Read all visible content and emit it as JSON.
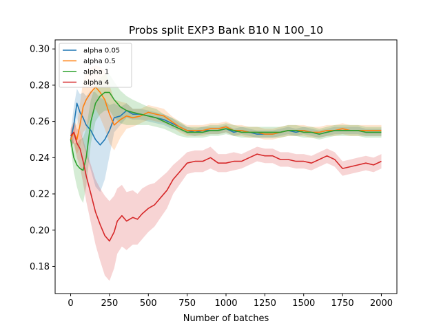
{
  "chart_data": {
    "type": "line",
    "title": "Probs split EXP3 Bank B10 N 100_10",
    "xlabel": "Number of batches",
    "ylabel": "",
    "xlim": [
      -100,
      2100
    ],
    "ylim": [
      0.165,
      0.305
    ],
    "x_ticks": [
      0,
      250,
      500,
      750,
      1000,
      1250,
      1500,
      1750,
      2000
    ],
    "y_ticks": [
      0.18,
      0.2,
      0.22,
      0.24,
      0.26,
      0.28,
      0.3
    ],
    "x_tick_labels": [
      "0",
      "250",
      "500",
      "750",
      "1000",
      "1250",
      "1500",
      "1750",
      "2000"
    ],
    "y_tick_labels": [
      "0.18",
      "0.20",
      "0.22",
      "0.24",
      "0.26",
      "0.28",
      "0.30"
    ],
    "grid": false,
    "legend_position": "top-left",
    "series": [
      {
        "name": "alpha 0.05",
        "color": "#1f77b4",
        "x": [
          0,
          20,
          40,
          60,
          80,
          100,
          130,
          160,
          190,
          220,
          250,
          280,
          320,
          360,
          400,
          450,
          500,
          550,
          600,
          650,
          700,
          750,
          800,
          850,
          900,
          950,
          1000,
          1050,
          1100,
          1150,
          1200,
          1250,
          1300,
          1350,
          1400,
          1450,
          1500,
          1550,
          1600,
          1650,
          1700,
          1750,
          1800,
          1850,
          1900,
          1950,
          2000
        ],
        "values": [
          0.25,
          0.258,
          0.27,
          0.265,
          0.262,
          0.258,
          0.255,
          0.25,
          0.247,
          0.25,
          0.255,
          0.262,
          0.263,
          0.266,
          0.264,
          0.264,
          0.263,
          0.262,
          0.261,
          0.259,
          0.257,
          0.255,
          0.254,
          0.255,
          0.255,
          0.255,
          0.256,
          0.254,
          0.255,
          0.254,
          0.253,
          0.253,
          0.253,
          0.254,
          0.255,
          0.254,
          0.255,
          0.254,
          0.253,
          0.254,
          0.255,
          0.255,
          0.255,
          0.255,
          0.254,
          0.254,
          0.254
        ],
        "band": [
          0.004,
          0.01,
          0.008,
          0.01,
          0.014,
          0.016,
          0.022,
          0.026,
          0.026,
          0.022,
          0.014,
          0.008,
          0.005,
          0.004,
          0.003,
          0.003,
          0.003,
          0.003,
          0.003,
          0.003,
          0.002,
          0.002,
          0.002,
          0.002,
          0.002,
          0.002,
          0.002,
          0.002,
          0.002,
          0.002,
          0.002,
          0.002,
          0.002,
          0.002,
          0.002,
          0.002,
          0.002,
          0.002,
          0.002,
          0.002,
          0.002,
          0.002,
          0.002,
          0.002,
          0.002,
          0.002,
          0.002
        ]
      },
      {
        "name": "alpha 0.5",
        "color": "#ff7f0e",
        "x": [
          0,
          20,
          40,
          60,
          80,
          100,
          130,
          160,
          190,
          220,
          250,
          280,
          320,
          360,
          400,
          450,
          500,
          550,
          600,
          650,
          700,
          750,
          800,
          850,
          900,
          950,
          1000,
          1050,
          1100,
          1150,
          1200,
          1250,
          1300,
          1350,
          1400,
          1450,
          1500,
          1550,
          1600,
          1650,
          1700,
          1750,
          1800,
          1850,
          1900,
          1950,
          2000
        ],
        "values": [
          0.25,
          0.254,
          0.25,
          0.258,
          0.268,
          0.272,
          0.276,
          0.279,
          0.276,
          0.272,
          0.264,
          0.258,
          0.261,
          0.263,
          0.262,
          0.263,
          0.265,
          0.264,
          0.263,
          0.26,
          0.257,
          0.255,
          0.255,
          0.255,
          0.256,
          0.256,
          0.257,
          0.255,
          0.255,
          0.254,
          0.254,
          0.253,
          0.253,
          0.254,
          0.255,
          0.255,
          0.255,
          0.254,
          0.254,
          0.255,
          0.255,
          0.256,
          0.255,
          0.255,
          0.255,
          0.255,
          0.255
        ],
        "band": [
          0.004,
          0.006,
          0.008,
          0.012,
          0.014,
          0.016,
          0.014,
          0.012,
          0.014,
          0.016,
          0.016,
          0.014,
          0.01,
          0.007,
          0.005,
          0.004,
          0.004,
          0.004,
          0.004,
          0.003,
          0.003,
          0.003,
          0.003,
          0.003,
          0.003,
          0.003,
          0.003,
          0.003,
          0.003,
          0.003,
          0.003,
          0.003,
          0.003,
          0.003,
          0.003,
          0.003,
          0.003,
          0.003,
          0.003,
          0.003,
          0.003,
          0.003,
          0.003,
          0.003,
          0.003,
          0.003,
          0.003
        ]
      },
      {
        "name": "alpha 1",
        "color": "#2ca02c",
        "x": [
          0,
          20,
          40,
          60,
          80,
          100,
          130,
          160,
          190,
          220,
          250,
          280,
          320,
          360,
          400,
          450,
          500,
          550,
          600,
          650,
          700,
          750,
          800,
          850,
          900,
          950,
          1000,
          1050,
          1100,
          1150,
          1200,
          1250,
          1300,
          1350,
          1400,
          1450,
          1500,
          1550,
          1600,
          1650,
          1700,
          1750,
          1800,
          1850,
          1900,
          1950,
          2000
        ],
        "values": [
          0.25,
          0.24,
          0.236,
          0.234,
          0.233,
          0.24,
          0.26,
          0.27,
          0.274,
          0.276,
          0.276,
          0.272,
          0.268,
          0.266,
          0.265,
          0.264,
          0.263,
          0.262,
          0.26,
          0.258,
          0.256,
          0.254,
          0.254,
          0.254,
          0.255,
          0.255,
          0.256,
          0.255,
          0.254,
          0.254,
          0.254,
          0.254,
          0.254,
          0.254,
          0.255,
          0.255,
          0.254,
          0.254,
          0.253,
          0.254,
          0.255,
          0.255,
          0.255,
          0.255,
          0.254,
          0.254,
          0.254
        ],
        "band": [
          0.004,
          0.008,
          0.012,
          0.016,
          0.018,
          0.016,
          0.012,
          0.01,
          0.01,
          0.01,
          0.01,
          0.01,
          0.009,
          0.008,
          0.007,
          0.006,
          0.005,
          0.005,
          0.004,
          0.004,
          0.004,
          0.003,
          0.003,
          0.003,
          0.003,
          0.003,
          0.003,
          0.003,
          0.003,
          0.003,
          0.003,
          0.003,
          0.003,
          0.003,
          0.003,
          0.003,
          0.003,
          0.003,
          0.003,
          0.003,
          0.003,
          0.003,
          0.003,
          0.003,
          0.003,
          0.003,
          0.003
        ]
      },
      {
        "name": "alpha 4",
        "color": "#d62728",
        "x": [
          0,
          20,
          40,
          60,
          80,
          100,
          130,
          160,
          190,
          220,
          250,
          280,
          300,
          330,
          360,
          400,
          430,
          460,
          500,
          540,
          580,
          620,
          660,
          700,
          750,
          800,
          850,
          900,
          950,
          1000,
          1050,
          1100,
          1150,
          1200,
          1250,
          1300,
          1350,
          1400,
          1450,
          1500,
          1550,
          1600,
          1650,
          1700,
          1750,
          1800,
          1850,
          1900,
          1950,
          2000
        ],
        "values": [
          0.252,
          0.254,
          0.248,
          0.245,
          0.238,
          0.23,
          0.22,
          0.21,
          0.203,
          0.197,
          0.194,
          0.199,
          0.205,
          0.208,
          0.205,
          0.207,
          0.206,
          0.209,
          0.212,
          0.214,
          0.218,
          0.222,
          0.228,
          0.232,
          0.237,
          0.238,
          0.238,
          0.24,
          0.237,
          0.237,
          0.238,
          0.238,
          0.24,
          0.242,
          0.241,
          0.241,
          0.239,
          0.239,
          0.238,
          0.238,
          0.237,
          0.239,
          0.241,
          0.239,
          0.234,
          0.235,
          0.236,
          0.237,
          0.236,
          0.238
        ],
        "band": [
          0.004,
          0.006,
          0.008,
          0.01,
          0.012,
          0.014,
          0.016,
          0.018,
          0.02,
          0.022,
          0.022,
          0.02,
          0.018,
          0.017,
          0.016,
          0.015,
          0.014,
          0.014,
          0.013,
          0.012,
          0.011,
          0.01,
          0.008,
          0.007,
          0.006,
          0.006,
          0.006,
          0.006,
          0.005,
          0.005,
          0.005,
          0.004,
          0.004,
          0.004,
          0.004,
          0.004,
          0.004,
          0.004,
          0.004,
          0.004,
          0.004,
          0.004,
          0.004,
          0.004,
          0.004,
          0.004,
          0.004,
          0.004,
          0.004,
          0.004
        ]
      }
    ]
  }
}
